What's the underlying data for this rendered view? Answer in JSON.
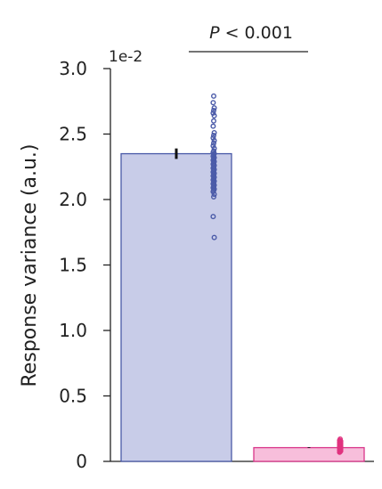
{
  "chart_data": {
    "type": "bar",
    "ylabel": "Response variance (a.u.)",
    "y_multiplier_label": "1e-2",
    "ylim": [
      0,
      3.0
    ],
    "y_ticks": [
      {
        "value": 0,
        "label": "0"
      },
      {
        "value": 0.5,
        "label": "0.5"
      },
      {
        "value": 1.0,
        "label": "1.0"
      },
      {
        "value": 1.5,
        "label": "1.5"
      },
      {
        "value": 2.0,
        "label": "2.0"
      },
      {
        "value": 2.5,
        "label": "2.5"
      },
      {
        "value": 3.0,
        "label": "3.0"
      }
    ],
    "significance": {
      "italic": "P",
      "rest": " < 0.001"
    },
    "bars": [
      {
        "value": 2.35,
        "error": 0.04,
        "fill": "#c8cce8",
        "stroke": "#4a5aa8",
        "point_color": "#4a5aa8",
        "points": [
          2.79,
          2.74,
          2.7,
          2.68,
          2.66,
          2.64,
          2.6,
          2.56,
          2.51,
          2.49,
          2.47,
          2.45,
          2.43,
          2.41,
          2.39,
          2.37,
          2.36,
          2.35,
          2.34,
          2.33,
          2.32,
          2.31,
          2.3,
          2.29,
          2.28,
          2.27,
          2.26,
          2.25,
          2.24,
          2.23,
          2.22,
          2.21,
          2.2,
          2.19,
          2.18,
          2.17,
          2.16,
          2.15,
          2.14,
          2.13,
          2.12,
          2.11,
          2.1,
          2.09,
          2.08,
          2.07,
          2.06,
          2.04,
          2.02,
          1.87,
          1.71
        ]
      },
      {
        "value": 0.105,
        "error": 0.003,
        "fill": "#f7bedb",
        "stroke": "#d9368a",
        "point_color": "#e0337f",
        "points": [
          0.17,
          0.16,
          0.155,
          0.15,
          0.145,
          0.14,
          0.135,
          0.13,
          0.125,
          0.12,
          0.115,
          0.11,
          0.105,
          0.1,
          0.095,
          0.09,
          0.085,
          0.08,
          0.075,
          0.07
        ]
      }
    ]
  }
}
